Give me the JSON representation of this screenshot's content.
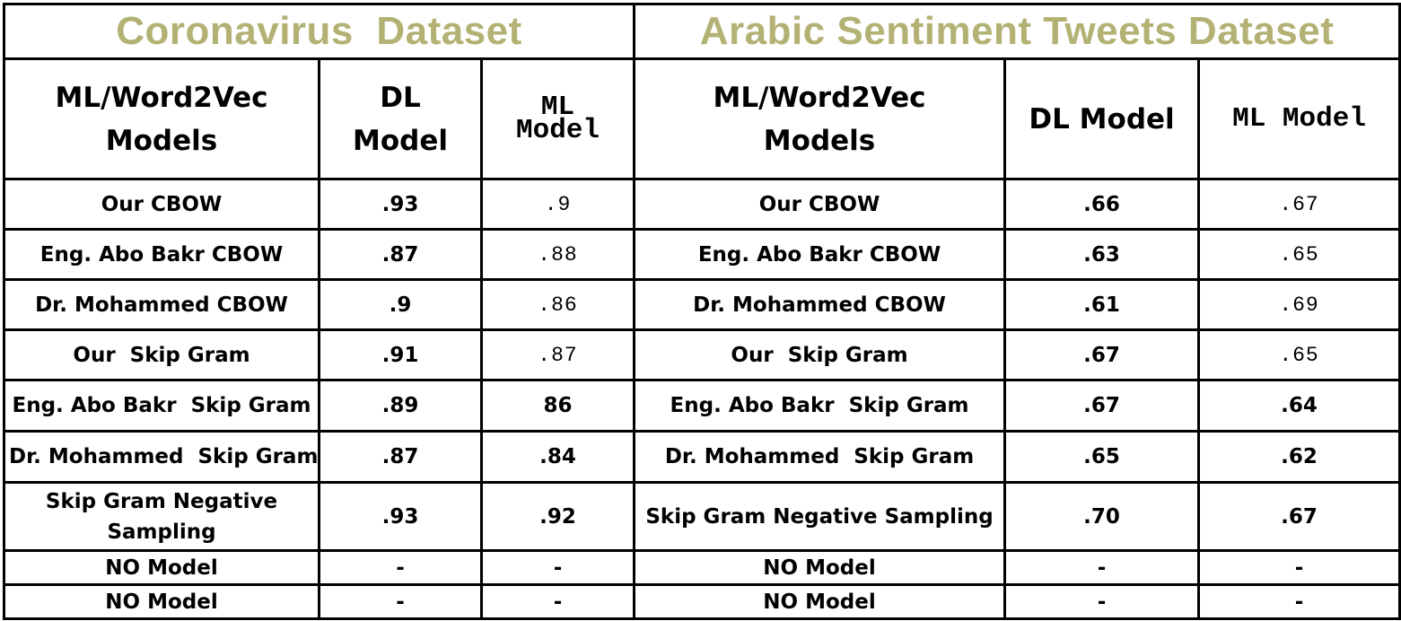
{
  "titles": {
    "left": "Coronavirus  Dataset",
    "right": "Arabic Sentiment Tweets Dataset"
  },
  "headers": {
    "left_model_line1": "ML/Word2Vec",
    "left_model_line2": "Models",
    "left_dl_line1": "DL",
    "left_dl_line2": "Model",
    "left_ml_line1": "ML",
    "left_ml_line2": "Model",
    "right_model_line1": "ML/Word2Vec",
    "right_model_line2": "Models",
    "right_dl": "DL Model",
    "right_ml": "ML Model"
  },
  "rows": [
    {
      "left_name": "Our CBOW",
      "left_dl": ".93",
      "left_ml": ".9",
      "right_name": "Our CBOW",
      "right_dl": ".66",
      "right_ml": ".67"
    },
    {
      "left_name": "Eng. Abo Bakr CBOW",
      "left_dl": ".87",
      "left_ml": ".88",
      "right_name": "Eng. Abo Bakr CBOW",
      "right_dl": ".63",
      "right_ml": ".65"
    },
    {
      "left_name": "Dr. Mohammed CBOW",
      "left_dl": ".9",
      "left_ml": ".86",
      "right_name": "Dr. Mohammed CBOW",
      "right_dl": ".61",
      "right_ml": ".69"
    },
    {
      "left_name": "Our  Skip Gram",
      "left_dl": ".91",
      "left_ml": ".87",
      "right_name": "Our  Skip Gram",
      "right_dl": ".67",
      "right_ml": ".65"
    },
    {
      "left_name": "Eng. Abo Bakr  Skip Gram",
      "left_dl": ".89",
      "left_ml": "86",
      "right_name": "Eng. Abo Bakr  Skip Gram",
      "right_dl": ".67",
      "right_ml": ".64"
    },
    {
      "left_name": "Dr. Mohammed  Skip Gram",
      "left_dl": ".87",
      "left_ml": ".84",
      "right_name": "Dr. Mohammed  Skip Gram",
      "right_dl": ".65",
      "right_ml": ".62"
    },
    {
      "left_name_line1": "Skip Gram Negative",
      "left_name_line2": "Sampling",
      "left_dl": ".93",
      "left_ml": ".92",
      "right_name": "Skip Gram Negative Sampling",
      "right_dl": ".70",
      "right_ml": ".67"
    },
    {
      "left_name": "NO Model",
      "left_dl": "-",
      "left_ml": "-",
      "right_name": "NO Model",
      "right_dl": "-",
      "right_ml": "-"
    },
    {
      "left_name": "NO Model",
      "left_dl": "-",
      "left_ml": "-",
      "right_name": "NO Model",
      "right_dl": "-",
      "right_ml": "-"
    }
  ]
}
